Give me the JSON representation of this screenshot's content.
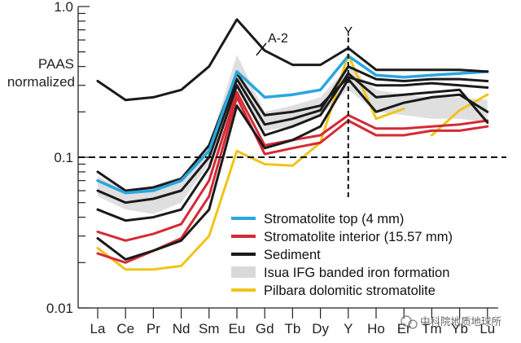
{
  "chart_data": {
    "type": "line",
    "ylabel_lines": [
      "PAAS",
      "normalized"
    ],
    "yscale": "log",
    "ylim": [
      0.01,
      1.0
    ],
    "yticks": [
      {
        "value": 1.0,
        "label": "1.0"
      },
      {
        "value": 0.1,
        "label": "0.1"
      },
      {
        "value": 0.01,
        "label": "0.01"
      }
    ],
    "categories": [
      "La",
      "Ce",
      "Pr",
      "Nd",
      "Sm",
      "Eu",
      "Gd",
      "Tb",
      "Dy",
      "Y",
      "Ho",
      "Er",
      "Tm",
      "Yb",
      "Lu"
    ],
    "reference_line_y": 0.1,
    "reference_line_x": "Y",
    "annotations": [
      {
        "text": "A-2",
        "x": "Eu"
      },
      {
        "text": "Y",
        "x": "Y"
      }
    ],
    "legend": [
      {
        "label": "Stromatolite top (4 mm)",
        "color": "#27a7df"
      },
      {
        "label": "Stromatolite interior (15.57 mm)",
        "color": "#d42a35"
      },
      {
        "label": "Sediment",
        "color": "#1a1a1a"
      },
      {
        "label": "Isua IFG banded iron formation",
        "color": "#d9d9d9"
      },
      {
        "label": "Pilbara dolomitic stromatolite",
        "color": "#f0c419"
      }
    ],
    "band": {
      "color": "#dcdcdc",
      "upper": [
        0.075,
        0.06,
        0.065,
        0.075,
        0.12,
        0.48,
        0.2,
        0.22,
        0.25,
        0.4,
        0.28,
        0.26,
        0.25,
        0.25,
        0.24
      ],
      "lower": [
        0.055,
        0.045,
        0.042,
        0.05,
        0.09,
        0.28,
        0.15,
        0.16,
        0.19,
        0.28,
        0.2,
        0.19,
        0.18,
        0.18,
        0.17
      ]
    },
    "series": [
      {
        "color": "#f0c419",
        "width": 3,
        "values": [
          0.025,
          0.018,
          0.018,
          0.019,
          0.03,
          0.11,
          0.09,
          0.088,
          0.125,
          0.48,
          0.18,
          0.21,
          null,
          null,
          null
        ]
      },
      {
        "color": "#f0c419",
        "width": 3,
        "values": [
          null,
          null,
          null,
          null,
          null,
          null,
          null,
          null,
          null,
          null,
          null,
          null,
          0.14,
          0.205,
          0.26
        ]
      },
      {
        "color": "#d42a35",
        "width": 3,
        "values": [
          0.023,
          0.02,
          0.024,
          0.029,
          0.055,
          0.25,
          0.105,
          0.115,
          0.125,
          0.175,
          0.14,
          0.14,
          0.15,
          0.15,
          0.16
        ]
      },
      {
        "color": "#d42a35",
        "width": 3,
        "values": [
          0.032,
          0.028,
          0.031,
          0.036,
          0.07,
          0.27,
          0.12,
          0.13,
          0.14,
          0.19,
          0.155,
          0.155,
          0.16,
          0.165,
          0.175
        ]
      },
      {
        "color": "#1a1a1a",
        "width": 3,
        "values": [
          0.029,
          0.021,
          0.024,
          0.028,
          0.045,
          0.22,
          0.115,
          0.13,
          0.16,
          0.33,
          0.2,
          0.23,
          0.25,
          0.26,
          0.2
        ]
      },
      {
        "color": "#1a1a1a",
        "width": 3,
        "values": [
          0.045,
          0.038,
          0.04,
          0.045,
          0.085,
          0.3,
          0.14,
          0.16,
          0.19,
          0.36,
          0.25,
          0.26,
          0.27,
          0.28,
          0.17
        ]
      },
      {
        "color": "#1a1a1a",
        "width": 3,
        "values": [
          0.08,
          0.06,
          0.063,
          0.072,
          0.12,
          0.36,
          0.19,
          0.2,
          0.22,
          0.34,
          0.3,
          0.3,
          0.31,
          0.3,
          0.29
        ]
      },
      {
        "color": "#1a1a1a",
        "width": 3,
        "values": [
          0.06,
          0.05,
          0.053,
          0.06,
          0.1,
          0.33,
          0.165,
          0.18,
          0.205,
          0.4,
          0.33,
          0.32,
          0.33,
          0.33,
          0.32
        ]
      },
      {
        "color": "#27a7df",
        "width": 3.5,
        "values": [
          0.07,
          0.058,
          0.06,
          0.07,
          0.11,
          0.37,
          0.25,
          0.26,
          0.28,
          0.47,
          0.35,
          0.34,
          0.35,
          0.36,
          0.37
        ]
      },
      {
        "color": "#1a1a1a",
        "width": 3,
        "values": [
          0.32,
          0.24,
          0.25,
          0.28,
          0.4,
          0.82,
          0.51,
          0.41,
          0.41,
          0.53,
          0.38,
          0.38,
          0.38,
          0.38,
          0.37
        ]
      }
    ]
  },
  "watermark": {
    "text": "中科院地质地球所",
    "icon": "wechat-icon"
  }
}
